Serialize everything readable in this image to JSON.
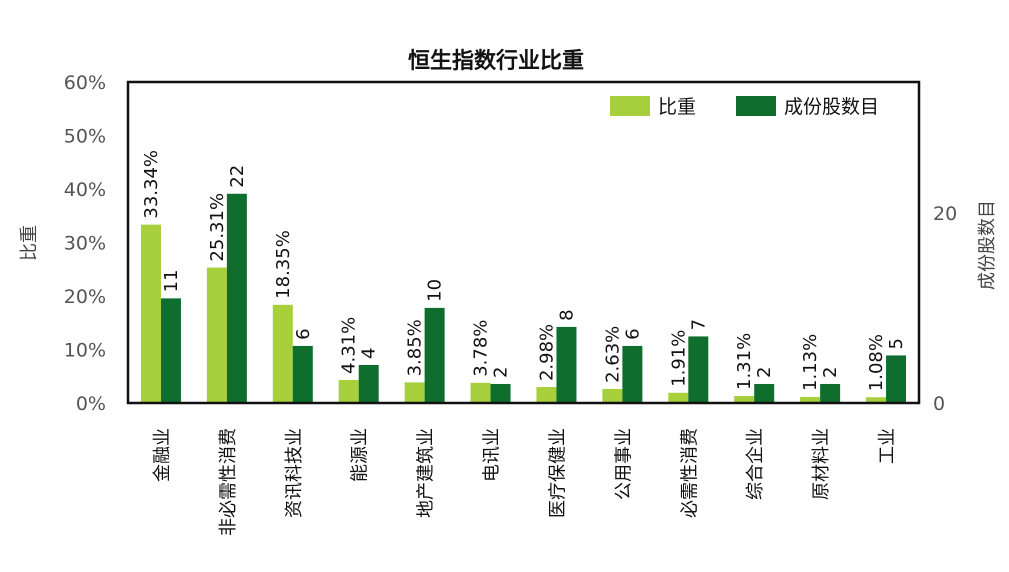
{
  "chart_data": {
    "type": "bar",
    "title": "恒生指数行业比重",
    "categories": [
      "金融业",
      "非必需性消费",
      "资讯科技业",
      "能源业",
      "地产建筑业",
      "电讯业",
      "医疗保健业",
      "公用事业",
      "必需性消费",
      "综合企业",
      "原材料业",
      "工业"
    ],
    "series": [
      {
        "name": "比重",
        "axis": "left",
        "color": "#a8cf3c",
        "values": [
          33.34,
          25.31,
          18.35,
          4.31,
          3.85,
          3.78,
          2.98,
          2.63,
          1.91,
          1.31,
          1.13,
          1.08
        ],
        "labels": [
          "33.34%",
          "25.31%",
          "18.35%",
          "4.31%",
          "3.85%",
          "3.78%",
          "2.98%",
          "2.63%",
          "1.91%",
          "1.31%",
          "1.13%",
          "1.08%"
        ]
      },
      {
        "name": "成份股数目",
        "axis": "right",
        "color": "#0f6e2e",
        "values": [
          11,
          22,
          6,
          4,
          10,
          2,
          8,
          6,
          7,
          2,
          2,
          5
        ],
        "labels": [
          "11",
          "22",
          "6",
          "4",
          "10",
          "2",
          "8",
          "6",
          "7",
          "2",
          "2",
          "5"
        ]
      }
    ],
    "ylabel": "比重",
    "y2label": "成份股数目",
    "ylim": [
      0,
      60
    ],
    "y2lim": [
      0,
      33.75
    ],
    "yticks": [
      "0%",
      "10%",
      "20%",
      "30%",
      "40%",
      "50%",
      "60%"
    ],
    "y2ticks": [
      "0",
      "20"
    ],
    "legend": "top-right",
    "grid": false
  }
}
